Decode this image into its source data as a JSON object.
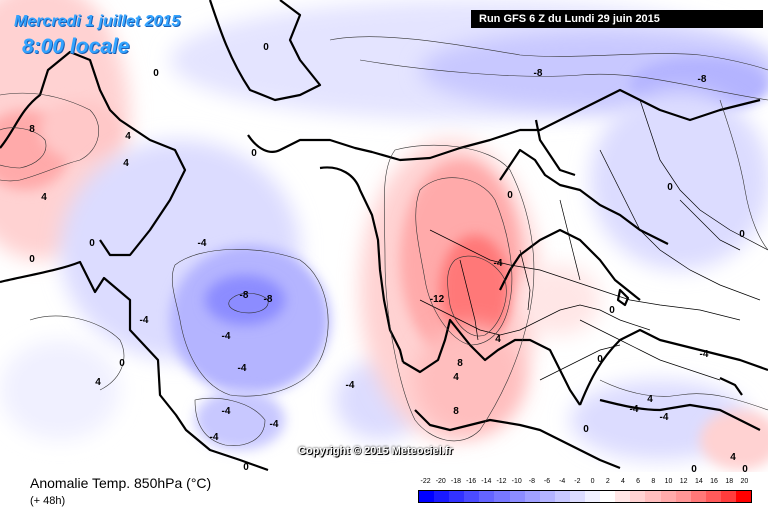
{
  "header": {
    "date": "Mercredi 1 juillet 2015",
    "time": "8:00 locale",
    "run_info": "Run GFS 6 Z du Lundi 29 juin 2015"
  },
  "copyright": "Copyright © 2015 Meteociel.fr",
  "footer": {
    "parameter": "Anomalie Temp. 850hPa (°C)",
    "forecast_hour": "(+ 48h)"
  },
  "legend": {
    "ticks": [
      "-22",
      "-20",
      "-18",
      "-16",
      "-14",
      "-12",
      "-10",
      "-8",
      "-6",
      "-4",
      "-2",
      "0",
      "2",
      "4",
      "6",
      "8",
      "10",
      "12",
      "14",
      "16",
      "18",
      "20"
    ],
    "colors": [
      "#0000ff",
      "#1a1aff",
      "#3232ff",
      "#4b4bff",
      "#6464ff",
      "#7878ff",
      "#8c8cff",
      "#a0a0ff",
      "#b4b4ff",
      "#c8c8ff",
      "#dcdcff",
      "#f0f0ff",
      "#ffffff",
      "#ffe6e6",
      "#ffd2d2",
      "#ffbebe",
      "#ffaaaa",
      "#ff9696",
      "#ff7878",
      "#ff5a5a",
      "#ff3c3c",
      "#ff0000"
    ]
  },
  "contour_labels": [
    {
      "text": "8"
    },
    {
      "text": "4"
    },
    {
      "text": "4"
    },
    {
      "text": "4"
    },
    {
      "text": "0"
    },
    {
      "text": "0"
    },
    {
      "text": "0"
    },
    {
      "text": "-4"
    },
    {
      "text": "-8"
    },
    {
      "text": "-8"
    },
    {
      "text": "-4"
    },
    {
      "text": "-4"
    },
    {
      "text": "-4"
    },
    {
      "text": "-4"
    },
    {
      "text": "-4"
    },
    {
      "text": "-4"
    },
    {
      "text": "-4"
    },
    {
      "text": "0"
    },
    {
      "text": "0"
    },
    {
      "text": "4"
    },
    {
      "text": "0"
    },
    {
      "text": "-4"
    },
    {
      "text": "-12"
    },
    {
      "text": "8"
    },
    {
      "text": "4"
    },
    {
      "text": "4"
    },
    {
      "text": "8"
    },
    {
      "text": "-8"
    },
    {
      "text": "-8"
    },
    {
      "text": "0"
    },
    {
      "text": "0"
    },
    {
      "text": "0"
    },
    {
      "text": "-4"
    },
    {
      "text": "-4"
    },
    {
      "text": "4"
    },
    {
      "text": "0"
    },
    {
      "text": "4"
    },
    {
      "text": "0"
    },
    {
      "text": "0"
    },
    {
      "text": "0"
    },
    {
      "text": "-4"
    },
    {
      "text": "0"
    },
    {
      "text": "0"
    }
  ]
}
